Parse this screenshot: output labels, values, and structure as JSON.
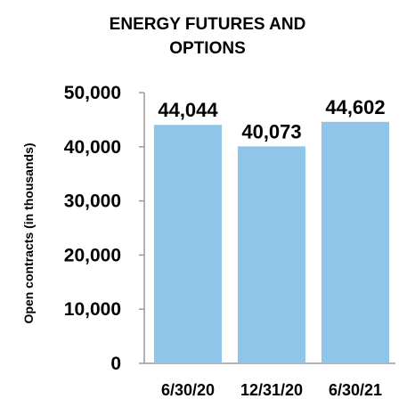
{
  "chart_data": {
    "type": "bar",
    "title_lines": [
      "ENERGY FUTURES AND",
      "OPTIONS"
    ],
    "xlabel": "",
    "ylabel": "Open contracts (in thousands)",
    "categories": [
      "6/30/20",
      "12/31/20",
      "6/30/21"
    ],
    "values": [
      44044,
      40073,
      44602
    ],
    "value_labels": [
      "44,044",
      "40,073",
      "44,602"
    ],
    "ylim": [
      0,
      50000
    ],
    "yticks": [
      0,
      10000,
      20000,
      30000,
      40000,
      50000
    ],
    "ytick_labels": [
      "0",
      "10,000",
      "20,000",
      "30,000",
      "40,000",
      "50,000"
    ],
    "grid": false,
    "bar_color": "#8FC5E9",
    "axis_color": "#9A9A9A"
  }
}
